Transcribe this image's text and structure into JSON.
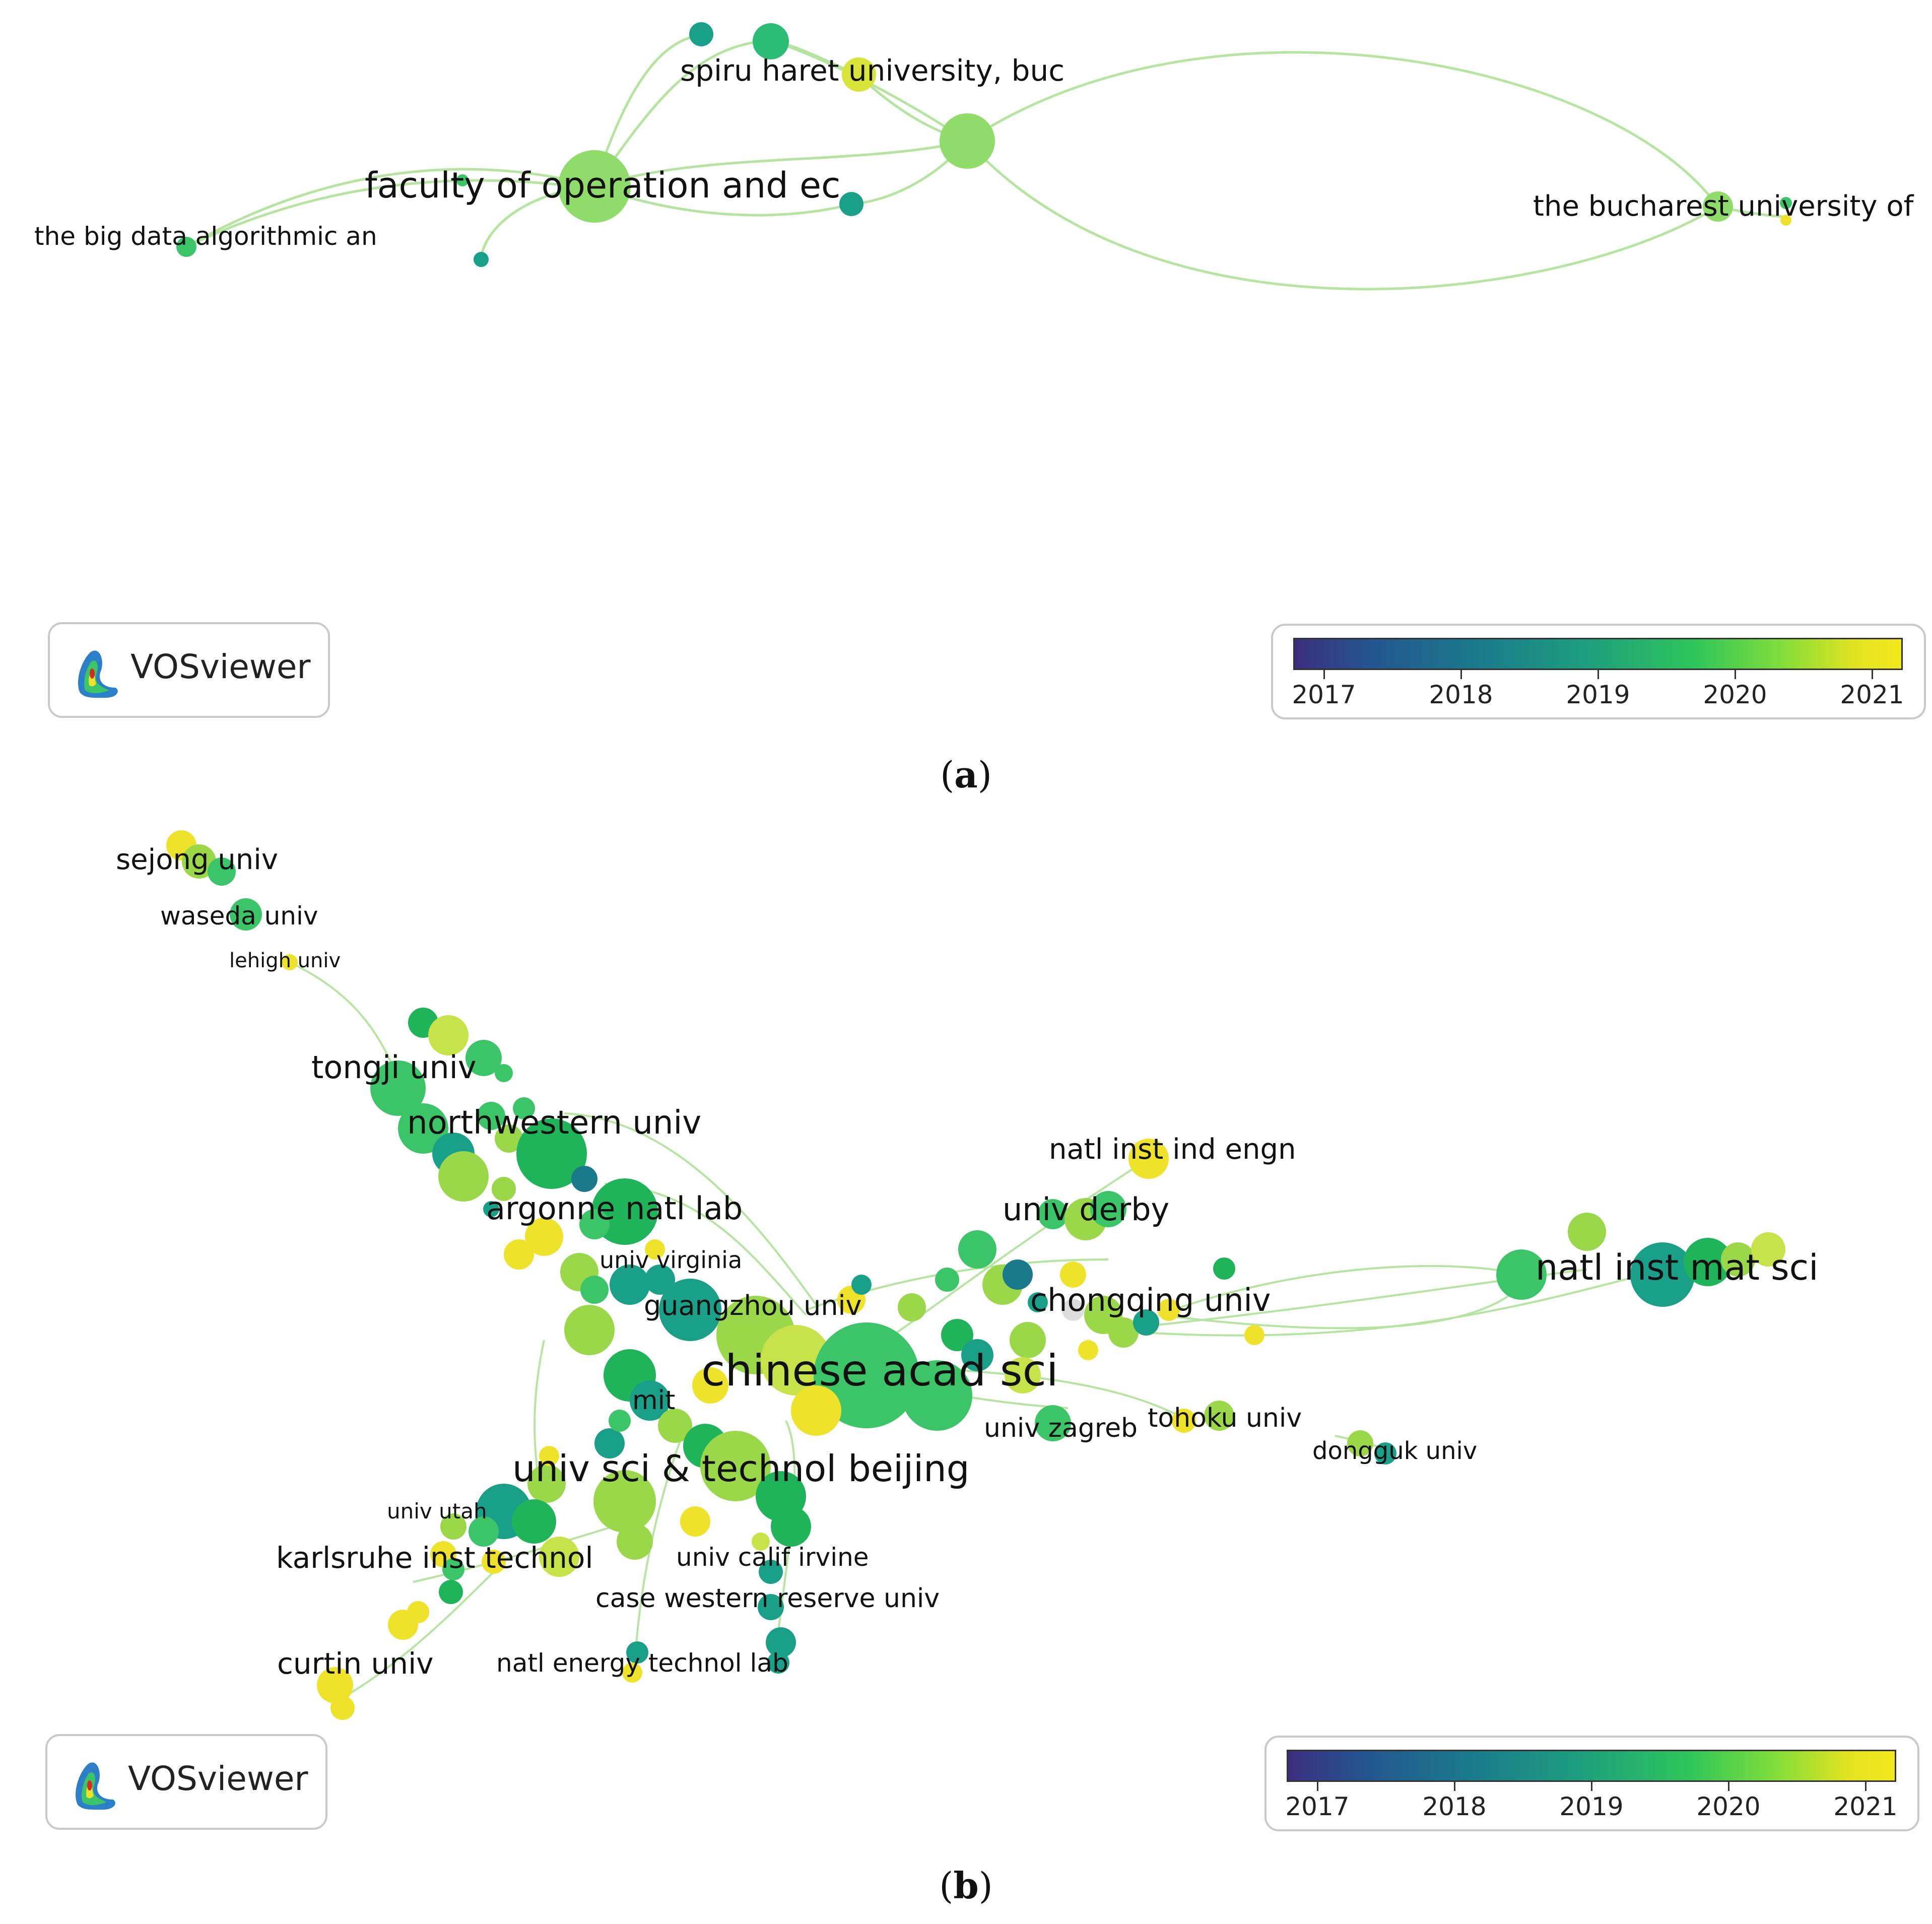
{
  "figure": {
    "panels": [
      {
        "id": "a",
        "caption_label": "a",
        "watermark": "VOSviewer",
        "legend": {
          "ticks": [
            "2017",
            "2018",
            "2019",
            "2020",
            "2021"
          ],
          "colors": {
            "start": "#3b2e7e",
            "mid": "#1d9e7e",
            "end": "#f3e81c"
          }
        },
        "node_labels": {
          "spiru": "spiru haret university, buc",
          "faculty": "faculty of operation and ec",
          "bucharest": "the bucharest university of",
          "bigdata": "the big data algorithmic an"
        }
      },
      {
        "id": "b",
        "caption_label": "b",
        "watermark": "VOSviewer",
        "legend": {
          "ticks": [
            "2017",
            "2018",
            "2019",
            "2020",
            "2021"
          ],
          "colors": {
            "start": "#3b2e7e",
            "mid": "#1d9e7e",
            "end": "#f3e81c"
          }
        },
        "node_labels": {
          "sejong": "sejong univ",
          "waseda": "waseda univ",
          "lehigh": "lehigh univ",
          "tongji": "tongji univ",
          "northwestern": "northwestern univ",
          "natlind": "natl inst ind engn",
          "argonne": "argonne natl lab",
          "derby": "univ derby",
          "virginia": "univ virginia",
          "natlmat": "natl inst mat sci",
          "chongqing": "chongqing univ",
          "guangzhou": "guangzhou univ",
          "chinese": "chinese acad sci",
          "mit": "mit",
          "tohoku": "tohoku univ",
          "zagreb": "univ zagreb",
          "dongguk": "dongguk univ",
          "ustb": "univ sci & technol beijing",
          "utah": "univ utah",
          "karlsruhe": "karlsruhe inst technol",
          "irvine": "univ calif irvine",
          "casewestern": "case western reserve univ",
          "curtin": "curtin univ",
          "netl": "natl energy technol lab"
        }
      }
    ]
  },
  "colors": {
    "edge": "#9edc8a",
    "teal": "#1aa088",
    "green": "#3cc468",
    "lime": "#9ad84a",
    "yellow": "#efe22a"
  }
}
